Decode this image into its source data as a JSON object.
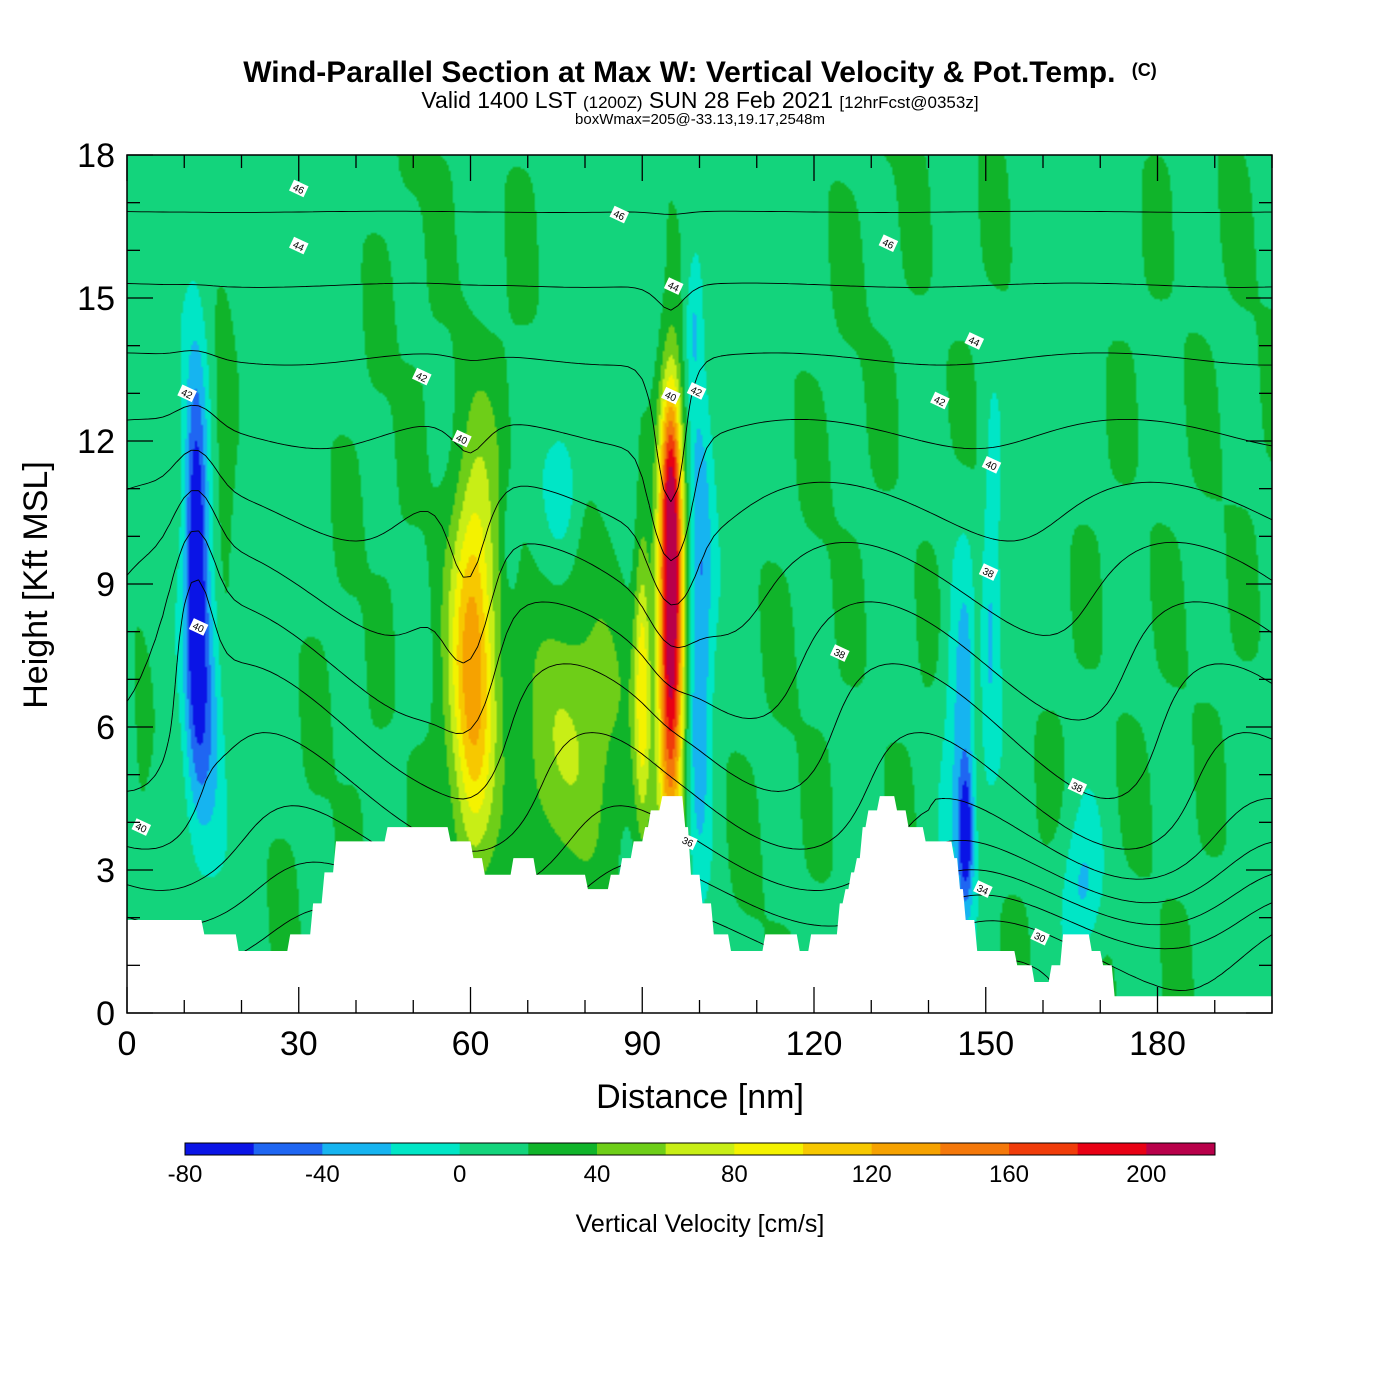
{
  "chart_data": {
    "type": "heatmap",
    "title": "Wind-Parallel Section at Max W: Vertical Velocity & Pot.Temp.",
    "copyright_mark": "(C)",
    "subtitle_main_a": "Valid 1400 LST",
    "subtitle_small_a": "(1200Z)",
    "subtitle_main_b": "SUN 28 Feb 2021",
    "subtitle_small_b": "[12hrFcst@0353z]",
    "subtitle2": "boxWmax=205@-33.13,19.17,2548m",
    "xlabel": "Distance [nm]",
    "ylabel": "Height [Kft MSL]",
    "xlim": [
      0,
      200
    ],
    "ylim": [
      0,
      18
    ],
    "x_ticks": [
      0,
      30,
      60,
      90,
      120,
      150,
      180
    ],
    "y_ticks": [
      0,
      3,
      6,
      9,
      12,
      15,
      18
    ],
    "colorbar": {
      "label": "Vertical Velocity [cm/s]",
      "bounds": [
        -80,
        220
      ],
      "step": 20,
      "tick_labels": [
        -80,
        -40,
        0,
        40,
        80,
        120,
        160,
        200
      ],
      "colors": [
        "#0a14e6",
        "#1f66f2",
        "#16b4f0",
        "#00e6c6",
        "#13d47c",
        "#10b42a",
        "#6ece18",
        "#c8ee16",
        "#f4f200",
        "#f7c800",
        "#f6a200",
        "#f4780a",
        "#f03c0a",
        "#e80014",
        "#b8004a"
      ]
    },
    "background_velocity": 10,
    "terrain_kft": [
      [
        0,
        1.95
      ],
      [
        4,
        1.95
      ],
      [
        8,
        1.95
      ],
      [
        13,
        1.95
      ],
      [
        13.5,
        1.65
      ],
      [
        19,
        1.65
      ],
      [
        19.5,
        1.3
      ],
      [
        28,
        1.3
      ],
      [
        28.5,
        1.65
      ],
      [
        32,
        1.65
      ],
      [
        32.5,
        2.3
      ],
      [
        34,
        2.3
      ],
      [
        34.5,
        2.95
      ],
      [
        36,
        2.95
      ],
      [
        36.5,
        3.6
      ],
      [
        45,
        3.6
      ],
      [
        45.5,
        3.9
      ],
      [
        56,
        3.9
      ],
      [
        56.5,
        3.6
      ],
      [
        60,
        3.6
      ],
      [
        60.5,
        3.25
      ],
      [
        62,
        3.25
      ],
      [
        62.5,
        2.9
      ],
      [
        67,
        2.9
      ],
      [
        67.5,
        3.25
      ],
      [
        71,
        3.25
      ],
      [
        71.5,
        2.9
      ],
      [
        80,
        2.9
      ],
      [
        80.5,
        2.6
      ],
      [
        84,
        2.6
      ],
      [
        84.5,
        2.9
      ],
      [
        86,
        2.9
      ],
      [
        86.5,
        3.25
      ],
      [
        88,
        3.25
      ],
      [
        88.5,
        3.6
      ],
      [
        90,
        3.6
      ],
      [
        90.5,
        3.9
      ],
      [
        91,
        3.9
      ],
      [
        91.5,
        4.25
      ],
      [
        93,
        4.25
      ],
      [
        93.5,
        4.55
      ],
      [
        97,
        4.55
      ],
      [
        97.5,
        3.9
      ],
      [
        98,
        3.9
      ],
      [
        98.5,
        2.9
      ],
      [
        100,
        2.9
      ],
      [
        100.5,
        2.3
      ],
      [
        102,
        2.3
      ],
      [
        102.5,
        1.65
      ],
      [
        105,
        1.65
      ],
      [
        105.5,
        1.3
      ],
      [
        111,
        1.3
      ],
      [
        111.5,
        1.65
      ],
      [
        117,
        1.65
      ],
      [
        117.5,
        1.3
      ],
      [
        119,
        1.3
      ],
      [
        119.5,
        1.65
      ],
      [
        124,
        1.65
      ],
      [
        124.5,
        2.3
      ],
      [
        125,
        2.3
      ],
      [
        125.5,
        2.6
      ],
      [
        126,
        2.6
      ],
      [
        126.5,
        2.95
      ],
      [
        127,
        2.95
      ],
      [
        127.5,
        3.25
      ],
      [
        128,
        3.25
      ],
      [
        128.5,
        3.9
      ],
      [
        129,
        3.9
      ],
      [
        129.5,
        4.25
      ],
      [
        131,
        4.25
      ],
      [
        131.5,
        4.55
      ],
      [
        134,
        4.55
      ],
      [
        134.5,
        4.25
      ],
      [
        136,
        4.25
      ],
      [
        136.5,
        3.9
      ],
      [
        139,
        3.9
      ],
      [
        139.5,
        3.6
      ],
      [
        144,
        3.6
      ],
      [
        144.5,
        3.25
      ],
      [
        145,
        3.25
      ],
      [
        145.5,
        2.6
      ],
      [
        146,
        2.6
      ],
      [
        146.5,
        1.95
      ],
      [
        148,
        1.95
      ],
      [
        148.5,
        1.3
      ],
      [
        155,
        1.3
      ],
      [
        155.5,
        1.0
      ],
      [
        158,
        1.0
      ],
      [
        158.5,
        0.65
      ],
      [
        161,
        0.65
      ],
      [
        161.5,
        1.0
      ],
      [
        163,
        1.0
      ],
      [
        163.5,
        1.65
      ],
      [
        168,
        1.65
      ],
      [
        168.5,
        1.3
      ],
      [
        170,
        1.3
      ],
      [
        170.5,
        1.0
      ],
      [
        172,
        1.0
      ],
      [
        172.5,
        0.35
      ],
      [
        200,
        0.35
      ]
    ],
    "velocity_features": [
      {
        "x": 60.5,
        "y": 7.0,
        "sx": 2.6,
        "sy": 2.8,
        "amp": 95
      },
      {
        "x": 61.0,
        "y": 8.0,
        "sx": 4.5,
        "sy": 3.5,
        "amp": 25
      },
      {
        "x": 95.0,
        "y": 8.0,
        "sx": 1.6,
        "sy": 3.2,
        "amp": 215
      },
      {
        "x": 95.0,
        "y": 11.3,
        "sx": 1.2,
        "sy": 1.4,
        "amp": 70
      },
      {
        "x": 90.0,
        "y": 7.0,
        "sx": 1.0,
        "sy": 2.2,
        "amp": 75
      },
      {
        "x": 80.0,
        "y": 6.0,
        "sx": 6.0,
        "sy": 2.4,
        "amp": 45
      },
      {
        "x": 72.0,
        "y": 5.0,
        "sx": 4.0,
        "sy": 2.0,
        "amp": 20
      },
      {
        "x": 12.0,
        "y": 9.6,
        "sx": 1.4,
        "sy": 2.8,
        "amp": -95
      },
      {
        "x": 14.0,
        "y": 6.5,
        "sx": 2.0,
        "sy": 2.2,
        "amp": -45
      },
      {
        "x": 100.0,
        "y": 8.0,
        "sx": 1.6,
        "sy": 3.5,
        "amp": -55
      },
      {
        "x": 99.0,
        "y": 14.5,
        "sx": 1.0,
        "sy": 1.0,
        "amp": -30
      },
      {
        "x": 76.0,
        "y": 11.0,
        "sx": 2.0,
        "sy": 0.9,
        "amp": -30
      },
      {
        "x": 67.0,
        "y": 10.0,
        "sx": 1.0,
        "sy": 0.8,
        "amp": -25
      },
      {
        "x": 146.0,
        "y": 6.0,
        "sx": 2.2,
        "sy": 2.6,
        "amp": -45
      },
      {
        "x": 146.5,
        "y": 3.7,
        "sx": 0.9,
        "sy": 1.0,
        "amp": -70
      },
      {
        "x": 151.0,
        "y": 9.0,
        "sx": 1.2,
        "sy": 2.5,
        "amp": -30
      },
      {
        "x": 167.0,
        "y": 2.6,
        "sx": 2.5,
        "sy": 1.1,
        "amp": -40
      },
      {
        "x": 148.5,
        "y": 7.0,
        "sx": 0.8,
        "sy": 2.0,
        "amp": 25
      },
      {
        "x": 17.0,
        "y": 11.0,
        "sx": 1.5,
        "sy": 2.5,
        "amp": 25
      },
      {
        "x": 2.5,
        "y": 5.0,
        "sx": 1.5,
        "sy": 2.0,
        "amp": 15
      }
    ],
    "velocity_streaks": [
      {
        "x0": 30,
        "slope": 1.3,
        "w": 3.0,
        "amp": 12
      },
      {
        "x0": 40,
        "slope": 1.2,
        "w": 2.5,
        "amp": 12
      },
      {
        "x0": 52,
        "slope": 1.4,
        "w": 3.0,
        "amp": 12
      },
      {
        "x0": 108,
        "slope": 1.5,
        "w": 3.5,
        "amp": 12
      },
      {
        "x0": 120,
        "slope": 1.4,
        "w": 3.0,
        "amp": 12
      },
      {
        "x0": 135,
        "slope": 1.3,
        "w": 3.0,
        "amp": 12
      },
      {
        "x0": 160,
        "slope": 1.6,
        "w": 3.0,
        "amp": 12
      },
      {
        "x0": 175,
        "slope": 1.5,
        "w": 3.5,
        "amp": 12
      },
      {
        "x0": 188,
        "slope": 1.4,
        "w": 3.0,
        "amp": 12
      }
    ],
    "pot_temp": {
      "interval": 1,
      "min": 26,
      "max": 48,
      "base_K": 36.0,
      "lapse_per_kft": 0.65,
      "labels": [
        {
          "v": "46",
          "x": 30,
          "y": 17.3
        },
        {
          "v": "46",
          "x": 86,
          "y": 16.75
        },
        {
          "v": "46",
          "x": 133,
          "y": 16.15
        },
        {
          "v": "44",
          "x": 30,
          "y": 16.1
        },
        {
          "v": "44",
          "x": 95.5,
          "y": 15.25
        },
        {
          "v": "44",
          "x": 148,
          "y": 14.1
        },
        {
          "v": "42",
          "x": 51.5,
          "y": 13.35
        },
        {
          "v": "42",
          "x": 142,
          "y": 12.85
        },
        {
          "v": "42",
          "x": 10.5,
          "y": 13.0
        },
        {
          "v": "42",
          "x": 99.5,
          "y": 13.05
        },
        {
          "v": "40",
          "x": 58.5,
          "y": 12.05
        },
        {
          "v": "40",
          "x": 151,
          "y": 11.5
        },
        {
          "v": "40",
          "x": 95,
          "y": 12.95
        },
        {
          "v": "40",
          "x": 12.5,
          "y": 8.1
        },
        {
          "v": "40",
          "x": 2.5,
          "y": 3.9
        },
        {
          "v": "38",
          "x": 150.5,
          "y": 9.25
        },
        {
          "v": "38",
          "x": 124.5,
          "y": 7.55
        },
        {
          "v": "38",
          "x": 166,
          "y": 4.75
        },
        {
          "v": "36",
          "x": 98.0,
          "y": 3.6
        },
        {
          "v": "34",
          "x": 149.5,
          "y": 2.6
        },
        {
          "v": "30",
          "x": 159.5,
          "y": 1.6
        }
      ]
    }
  }
}
